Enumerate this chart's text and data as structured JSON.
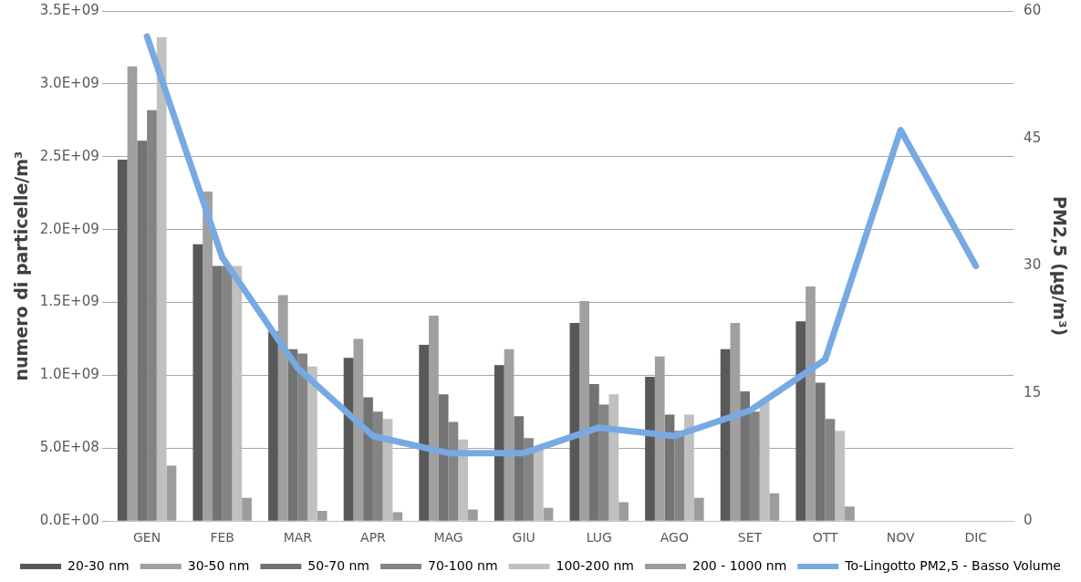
{
  "chart_data": {
    "type": "bar",
    "ylabel": "numero di particelle/m³",
    "y2label": "PM2,5 (µg/m³)",
    "categories": [
      "GEN",
      "FEB",
      "MAR",
      "APR",
      "MAG",
      "GIU",
      "LUG",
      "AGO",
      "SET",
      "OTT",
      "NOV",
      "DIC"
    ],
    "series": [
      {
        "name": "20-30 nm",
        "color": "#595959",
        "values": [
          2480000000.0,
          1900000000.0,
          1300000000.0,
          1120000000.0,
          1210000000.0,
          1070000000.0,
          1360000000.0,
          990000000.0,
          1180000000.0,
          1370000000.0,
          null,
          null
        ]
      },
      {
        "name": "30-50 nm",
        "color": "#a0a0a0",
        "values": [
          3120000000.0,
          2260000000.0,
          1550000000.0,
          1250000000.0,
          1410000000.0,
          1180000000.0,
          1510000000.0,
          1130000000.0,
          1360000000.0,
          1610000000.0,
          null,
          null
        ]
      },
      {
        "name": "50-70 nm",
        "color": "#737373",
        "values": [
          2610000000.0,
          1750000000.0,
          1180000000.0,
          850000000.0,
          870000000.0,
          720000000.0,
          940000000.0,
          730000000.0,
          890000000.0,
          950000000.0,
          null,
          null
        ]
      },
      {
        "name": "70-100 nm",
        "color": "#848484",
        "values": [
          2820000000.0,
          1750000000.0,
          1150000000.0,
          750000000.0,
          680000000.0,
          570000000.0,
          800000000.0,
          620000000.0,
          750000000.0,
          700000000.0,
          null,
          null
        ]
      },
      {
        "name": "100-200 nm",
        "color": "#c0c0c0",
        "values": [
          3320000000.0,
          1750000000.0,
          1060000000.0,
          700000000.0,
          560000000.0,
          500000000.0,
          870000000.0,
          730000000.0,
          820000000.0,
          620000000.0,
          null,
          null
        ]
      },
      {
        "name": "200 - 1000 nm",
        "color": "#9c9c9c",
        "values": [
          380000000.0,
          160000000.0,
          70000000.0,
          60000000.0,
          80000000.0,
          90000000.0,
          130000000.0,
          160000000.0,
          190000000.0,
          100000000.0,
          null,
          null
        ]
      },
      {
        "name": "To-Lingotto PM2,5 - Basso Volume",
        "type": "line",
        "axis": "y2",
        "color": "#77a9e3",
        "values": [
          57,
          31,
          18,
          10,
          8,
          8,
          11,
          10,
          13,
          19,
          46,
          30
        ]
      }
    ],
    "ylim": [
      0,
      3500000000.0
    ],
    "yticks": [
      {
        "value": 0,
        "label": "0.0E+00"
      },
      {
        "value": 500000000.0,
        "label": "5.0E+08"
      },
      {
        "value": 1000000000.0,
        "label": "1.0E+09"
      },
      {
        "value": 1500000000.0,
        "label": "1.5E+09"
      },
      {
        "value": 2000000000.0,
        "label": "2.0E+09"
      },
      {
        "value": 2500000000.0,
        "label": "2.5E+09"
      },
      {
        "value": 3000000000.0,
        "label": "3.0E+09"
      },
      {
        "value": 3500000000.0,
        "label": "3.5E+09"
      }
    ],
    "y2lim": [
      0,
      60
    ],
    "y2ticks": [
      0,
      15,
      30,
      45,
      60
    ],
    "grid": "y",
    "legend": "bottom",
    "marker": "none"
  }
}
